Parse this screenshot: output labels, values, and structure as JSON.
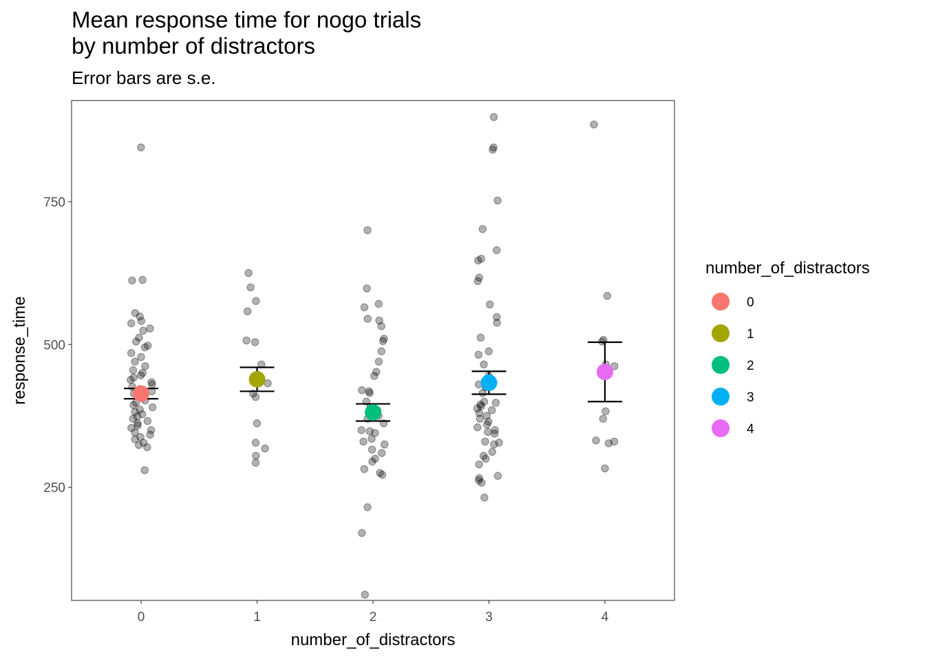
{
  "chart_data": {
    "type": "scatter",
    "title": "Mean response time for nogo trials\nby number of distractors",
    "subtitle": "Error bars are s.e.",
    "xlabel": "number_of_distractors",
    "ylabel": "response_time",
    "x_categories": [
      "0",
      "1",
      "2",
      "3",
      "4"
    ],
    "y_ticks": [
      250,
      500,
      750
    ],
    "ylim": [
      52,
      927
    ],
    "grid": false,
    "legend": {
      "title": "number_of_distractors",
      "position": "right",
      "entries": [
        {
          "label": "0",
          "color": "#F8766D"
        },
        {
          "label": "1",
          "color": "#A3A500"
        },
        {
          "label": "2",
          "color": "#00BF7D"
        },
        {
          "label": "3",
          "color": "#00B0F6"
        },
        {
          "label": "4",
          "color": "#E76BF3"
        }
      ]
    },
    "jitter_points": {
      "color": "#000000",
      "opacity": 0.3,
      "groups": [
        {
          "category": "0",
          "values": [
            845,
            613,
            612,
            555,
            549,
            541,
            537,
            528,
            524,
            512,
            505,
            498,
            495,
            485,
            478,
            470,
            462,
            455,
            450,
            446,
            442,
            438,
            434,
            430,
            426,
            422,
            418,
            414,
            410,
            406,
            402,
            398,
            394,
            390,
            386,
            382,
            378,
            374,
            370,
            366,
            362,
            358,
            354,
            350,
            346,
            342,
            338,
            334,
            328,
            324,
            320,
            280
          ]
        },
        {
          "category": "1",
          "values": [
            625,
            600,
            576,
            558,
            507,
            504,
            465,
            440,
            432,
            414,
            408,
            362,
            328,
            318,
            305,
            293
          ]
        },
        {
          "category": "2",
          "values": [
            700,
            598,
            571,
            565,
            545,
            542,
            532,
            510,
            506,
            488,
            470,
            452,
            445,
            420,
            418,
            415,
            400,
            390,
            385,
            375,
            370,
            362,
            350,
            348,
            345,
            335,
            330,
            325,
            316,
            310,
            300,
            295,
            282,
            275,
            272,
            215,
            170,
            62
          ]
        },
        {
          "category": "3",
          "values": [
            898,
            845,
            841,
            752,
            702,
            665,
            650,
            647,
            617,
            611,
            570,
            548,
            538,
            512,
            488,
            482,
            465,
            445,
            430,
            425,
            415,
            400,
            398,
            395,
            392,
            388,
            385,
            380,
            375,
            370,
            365,
            360,
            355,
            350,
            347,
            344,
            330,
            328,
            325,
            312,
            305,
            300,
            290,
            270,
            266,
            262,
            258,
            232
          ]
        },
        {
          "category": "4",
          "values": [
            885,
            585,
            508,
            505,
            465,
            462,
            383,
            370,
            332,
            330,
            327,
            283
          ]
        }
      ]
    },
    "series": [
      {
        "category": "0",
        "mean": 414,
        "se_low": 405,
        "se_high": 423,
        "color": "#F8766D"
      },
      {
        "category": "1",
        "mean": 439,
        "se_low": 418,
        "se_high": 460,
        "color": "#A3A500"
      },
      {
        "category": "2",
        "mean": 381,
        "se_low": 366,
        "se_high": 396,
        "color": "#00BF7D"
      },
      {
        "category": "3",
        "mean": 433,
        "se_low": 413,
        "se_high": 453,
        "color": "#00B0F6"
      },
      {
        "category": "4",
        "mean": 452,
        "se_low": 400,
        "se_high": 504,
        "color": "#E76BF3"
      }
    ]
  }
}
